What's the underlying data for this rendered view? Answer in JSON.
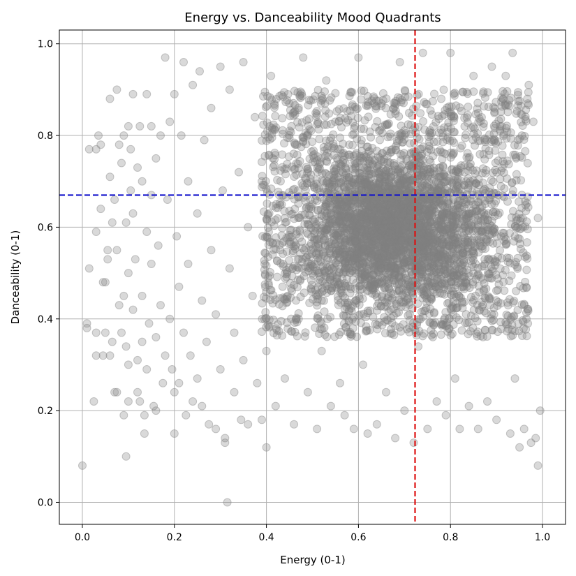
{
  "chart_data": {
    "type": "scatter",
    "title": "Energy vs. Danceability Mood Quadrants",
    "xlabel": "Energy (0-1)",
    "ylabel": "Danceability (0-1)",
    "xlim": [
      -0.05,
      1.05
    ],
    "ylim": [
      -0.048,
      1.03
    ],
    "x_ticks": [
      0.0,
      0.2,
      0.4,
      0.6,
      0.8,
      1.0
    ],
    "x_tick_labels": [
      "0.0",
      "0.2",
      "0.4",
      "0.6",
      "0.8",
      "1.0"
    ],
    "y_ticks": [
      0.0,
      0.2,
      0.4,
      0.6,
      0.8,
      1.0
    ],
    "y_tick_labels": [
      "0.0",
      "0.2",
      "0.4",
      "0.6",
      "0.8",
      "1.0"
    ],
    "grid": true,
    "legend": "none",
    "point_color": "#808080",
    "point_opacity": 0.3,
    "reference_lines": [
      {
        "orientation": "vertical",
        "axis": "x",
        "value": 0.723,
        "color": "#dd1111",
        "style": "dashed"
      },
      {
        "orientation": "horizontal",
        "axis": "y",
        "value": 0.67,
        "color": "#1111cc",
        "style": "dashed"
      }
    ],
    "series": [
      {
        "points": [
          [
            0.0,
            0.08
          ],
          [
            0.01,
            0.38
          ],
          [
            0.01,
            0.39
          ],
          [
            0.015,
            0.51
          ],
          [
            0.015,
            0.77
          ],
          [
            0.025,
            0.22
          ],
          [
            0.03,
            0.32
          ],
          [
            0.03,
            0.37
          ],
          [
            0.03,
            0.77
          ],
          [
            0.03,
            0.59
          ],
          [
            0.035,
            0.8
          ],
          [
            0.04,
            0.78
          ],
          [
            0.04,
            0.64
          ],
          [
            0.045,
            0.48
          ],
          [
            0.045,
            0.32
          ],
          [
            0.05,
            0.48
          ],
          [
            0.05,
            0.37
          ],
          [
            0.055,
            0.55
          ],
          [
            0.055,
            0.53
          ],
          [
            0.06,
            0.32
          ],
          [
            0.06,
            0.71
          ],
          [
            0.06,
            0.88
          ],
          [
            0.065,
            0.35
          ],
          [
            0.065,
            0.61
          ],
          [
            0.07,
            0.66
          ],
          [
            0.07,
            0.24
          ],
          [
            0.075,
            0.24
          ],
          [
            0.075,
            0.9
          ],
          [
            0.075,
            0.55
          ],
          [
            0.08,
            0.43
          ],
          [
            0.08,
            0.78
          ],
          [
            0.085,
            0.74
          ],
          [
            0.085,
            0.37
          ],
          [
            0.09,
            0.19
          ],
          [
            0.09,
            0.8
          ],
          [
            0.09,
            0.45
          ],
          [
            0.095,
            0.1
          ],
          [
            0.095,
            0.34
          ],
          [
            0.095,
            0.61
          ],
          [
            0.1,
            0.22
          ],
          [
            0.1,
            0.3
          ],
          [
            0.1,
            0.5
          ],
          [
            0.1,
            0.82
          ],
          [
            0.105,
            0.68
          ],
          [
            0.105,
            0.77
          ],
          [
            0.11,
            0.89
          ],
          [
            0.11,
            0.63
          ],
          [
            0.11,
            0.42
          ],
          [
            0.115,
            0.53
          ],
          [
            0.12,
            0.24
          ],
          [
            0.12,
            0.31
          ],
          [
            0.12,
            0.73
          ],
          [
            0.125,
            0.22
          ],
          [
            0.125,
            0.82
          ],
          [
            0.13,
            0.35
          ],
          [
            0.13,
            0.7
          ],
          [
            0.13,
            0.45
          ],
          [
            0.135,
            0.19
          ],
          [
            0.135,
            0.15
          ],
          [
            0.14,
            0.89
          ],
          [
            0.14,
            0.29
          ],
          [
            0.14,
            0.59
          ],
          [
            0.145,
            0.39
          ],
          [
            0.15,
            0.82
          ],
          [
            0.15,
            0.67
          ],
          [
            0.15,
            0.52
          ],
          [
            0.155,
            0.21
          ],
          [
            0.16,
            0.75
          ],
          [
            0.16,
            0.36
          ],
          [
            0.16,
            0.2
          ],
          [
            0.165,
            0.56
          ],
          [
            0.17,
            0.43
          ],
          [
            0.17,
            0.8
          ],
          [
            0.175,
            0.26
          ],
          [
            0.18,
            0.97
          ],
          [
            0.18,
            0.32
          ],
          [
            0.185,
            0.66
          ],
          [
            0.19,
            0.4
          ],
          [
            0.19,
            0.83
          ],
          [
            0.195,
            0.29
          ],
          [
            0.2,
            0.24
          ],
          [
            0.2,
            0.89
          ],
          [
            0.2,
            0.15
          ],
          [
            0.205,
            0.58
          ],
          [
            0.21,
            0.47
          ],
          [
            0.21,
            0.26
          ],
          [
            0.215,
            0.8
          ],
          [
            0.22,
            0.96
          ],
          [
            0.22,
            0.37
          ],
          [
            0.225,
            0.19
          ],
          [
            0.23,
            0.52
          ],
          [
            0.23,
            0.7
          ],
          [
            0.235,
            0.32
          ],
          [
            0.24,
            0.91
          ],
          [
            0.24,
            0.22
          ],
          [
            0.25,
            0.27
          ],
          [
            0.25,
            0.63
          ],
          [
            0.255,
            0.94
          ],
          [
            0.26,
            0.21
          ],
          [
            0.26,
            0.44
          ],
          [
            0.265,
            0.79
          ],
          [
            0.27,
            0.35
          ],
          [
            0.275,
            0.17
          ],
          [
            0.28,
            0.55
          ],
          [
            0.28,
            0.86
          ],
          [
            0.29,
            0.16
          ],
          [
            0.29,
            0.41
          ],
          [
            0.3,
            0.95
          ],
          [
            0.3,
            0.29
          ],
          [
            0.305,
            0.68
          ],
          [
            0.31,
            0.14
          ],
          [
            0.31,
            0.13
          ],
          [
            0.315,
            0.0
          ],
          [
            0.32,
            0.51
          ],
          [
            0.32,
            0.9
          ],
          [
            0.33,
            0.24
          ],
          [
            0.33,
            0.37
          ],
          [
            0.34,
            0.72
          ],
          [
            0.345,
            0.18
          ],
          [
            0.35,
            0.96
          ],
          [
            0.35,
            0.31
          ],
          [
            0.36,
            0.6
          ],
          [
            0.36,
            0.17
          ],
          [
            0.37,
            0.45
          ],
          [
            0.375,
            0.84
          ],
          [
            0.38,
            0.26
          ],
          [
            0.39,
            0.18
          ],
          [
            0.39,
            0.7
          ],
          [
            0.4,
            0.12
          ],
          [
            0.4,
            0.33
          ],
          [
            0.41,
            0.93
          ],
          [
            0.42,
            0.21
          ],
          [
            0.43,
            0.55
          ],
          [
            0.44,
            0.27
          ],
          [
            0.45,
            0.87
          ],
          [
            0.46,
            0.17
          ],
          [
            0.47,
            0.4
          ],
          [
            0.48,
            0.97
          ],
          [
            0.49,
            0.24
          ],
          [
            0.5,
            0.65
          ],
          [
            0.51,
            0.16
          ],
          [
            0.52,
            0.33
          ],
          [
            0.53,
            0.92
          ],
          [
            0.54,
            0.21
          ],
          [
            0.55,
            0.47
          ],
          [
            0.56,
            0.26
          ],
          [
            0.57,
            0.19
          ],
          [
            0.58,
            0.78
          ],
          [
            0.59,
            0.16
          ],
          [
            0.6,
            0.97
          ],
          [
            0.61,
            0.3
          ],
          [
            0.62,
            0.15
          ],
          [
            0.63,
            0.56
          ],
          [
            0.64,
            0.17
          ],
          [
            0.65,
            0.87
          ],
          [
            0.66,
            0.24
          ],
          [
            0.67,
            0.42
          ],
          [
            0.68,
            0.14
          ],
          [
            0.69,
            0.96
          ],
          [
            0.7,
            0.2
          ],
          [
            0.71,
            0.62
          ],
          [
            0.72,
            0.13
          ],
          [
            0.73,
            0.34
          ],
          [
            0.74,
            0.98
          ],
          [
            0.75,
            0.16
          ],
          [
            0.76,
            0.52
          ],
          [
            0.77,
            0.22
          ],
          [
            0.78,
            0.88
          ],
          [
            0.79,
            0.19
          ],
          [
            0.8,
            0.98
          ],
          [
            0.81,
            0.27
          ],
          [
            0.82,
            0.16
          ],
          [
            0.83,
            0.66
          ],
          [
            0.84,
            0.21
          ],
          [
            0.85,
            0.93
          ],
          [
            0.86,
            0.16
          ],
          [
            0.87,
            0.43
          ],
          [
            0.88,
            0.22
          ],
          [
            0.89,
            0.95
          ],
          [
            0.9,
            0.18
          ],
          [
            0.91,
            0.58
          ],
          [
            0.92,
            0.93
          ],
          [
            0.93,
            0.15
          ],
          [
            0.935,
            0.98
          ],
          [
            0.94,
            0.27
          ],
          [
            0.95,
            0.12
          ],
          [
            0.955,
            0.8
          ],
          [
            0.96,
            0.16
          ],
          [
            0.965,
            0.4
          ],
          [
            0.97,
            0.91
          ],
          [
            0.975,
            0.13
          ],
          [
            0.98,
            0.83
          ],
          [
            0.985,
            0.14
          ],
          [
            0.99,
            0.08
          ],
          [
            0.99,
            0.62
          ],
          [
            0.995,
            0.2
          ]
        ],
        "dense_regions": [
          {
            "x": [
              0.35,
              0.99
            ],
            "y": [
              0.32,
              0.96
            ],
            "density": "very high"
          }
        ]
      }
    ]
  }
}
